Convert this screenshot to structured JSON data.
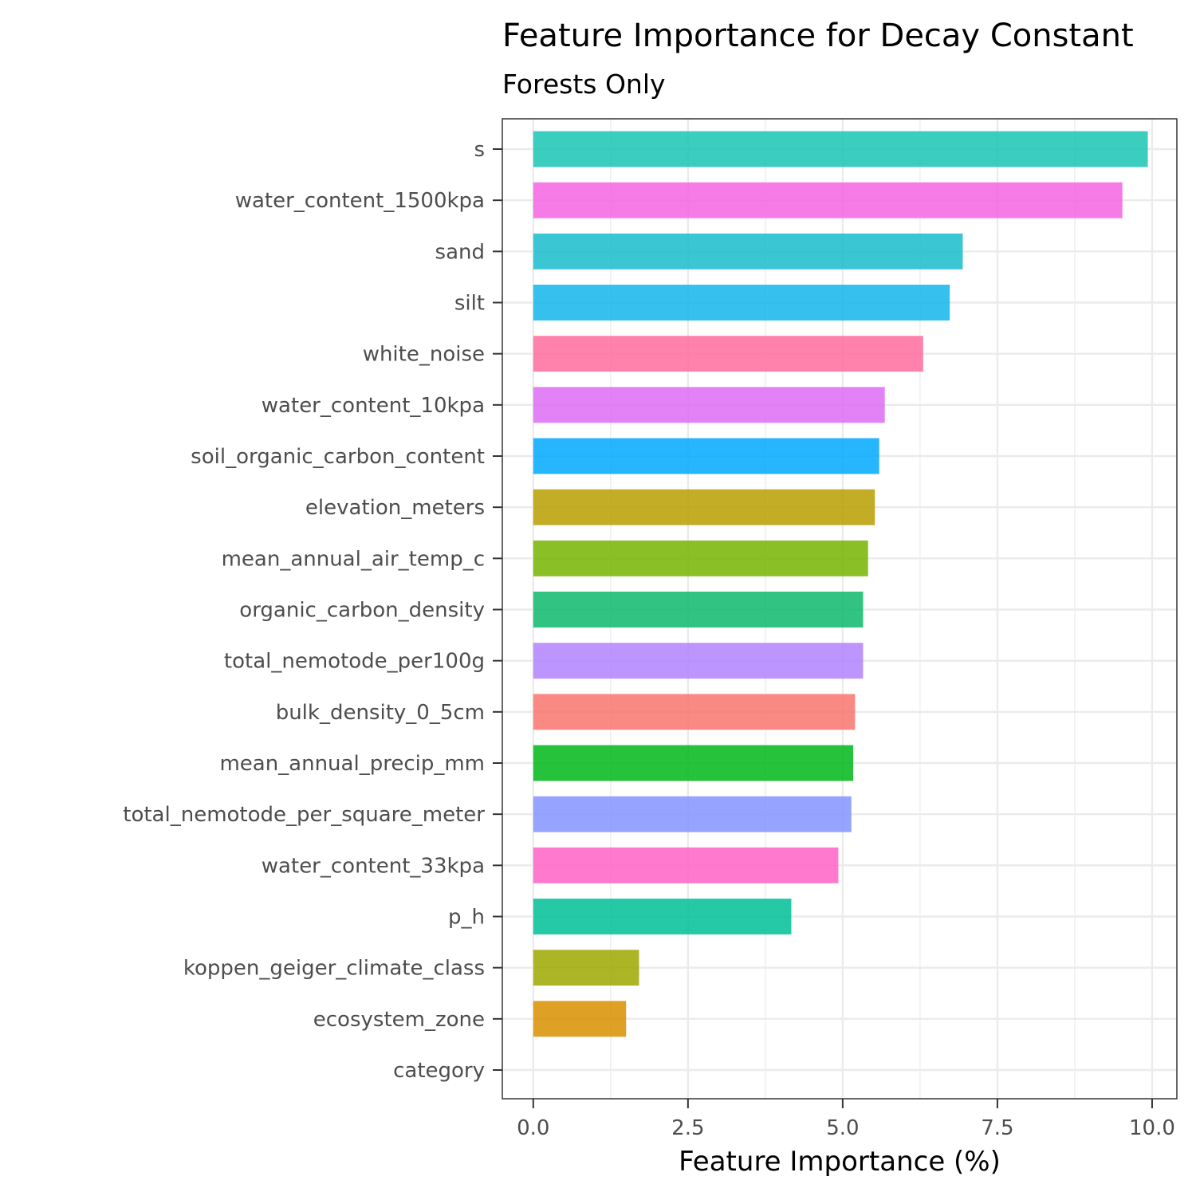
{
  "chart_data": {
    "type": "bar",
    "orientation": "horizontal",
    "title": "Feature Importance for Decay Constant",
    "subtitle": "Forests Only",
    "xlabel": "Feature Importance (%)",
    "ylabel": "",
    "xlim": [
      -0.5,
      10.4
    ],
    "xticks": [
      0.0,
      2.5,
      5.0,
      7.5,
      10.0
    ],
    "xtick_labels": [
      "0.0",
      "2.5",
      "5.0",
      "7.5",
      "10.0"
    ],
    "grid": true,
    "legend": "none",
    "categories": [
      "s",
      "water_content_1500kpa",
      "sand",
      "silt",
      "white_noise",
      "water_content_10kpa",
      "soil_organic_carbon_content",
      "elevation_meters",
      "mean_annual_air_temp_c",
      "organic_carbon_density",
      "total_nemotode_per100g",
      "bulk_density_0_5cm",
      "mean_annual_precip_mm",
      "total_nemotode_per_square_meter",
      "water_content_33kpa",
      "p_h",
      "koppen_geiger_climate_class",
      "ecosystem_zone",
      "category"
    ],
    "values": [
      9.93,
      9.52,
      6.94,
      6.73,
      6.3,
      5.68,
      5.59,
      5.52,
      5.41,
      5.33,
      5.33,
      5.2,
      5.17,
      5.14,
      4.93,
      4.17,
      1.71,
      1.5,
      0.0
    ],
    "colors": [
      "#19C4B3",
      "#F564E3",
      "#19BCCC",
      "#12B5EB",
      "#FF6C9F",
      "#DE6CF5",
      "#00A9FF",
      "#B89D00",
      "#76B400",
      "#0CB96B",
      "#B183FF",
      "#F8766D",
      "#00B71A",
      "#8494FF",
      "#FF63C6",
      "#00C096",
      "#9CA800",
      "#D89000",
      "#F8766D"
    ]
  }
}
